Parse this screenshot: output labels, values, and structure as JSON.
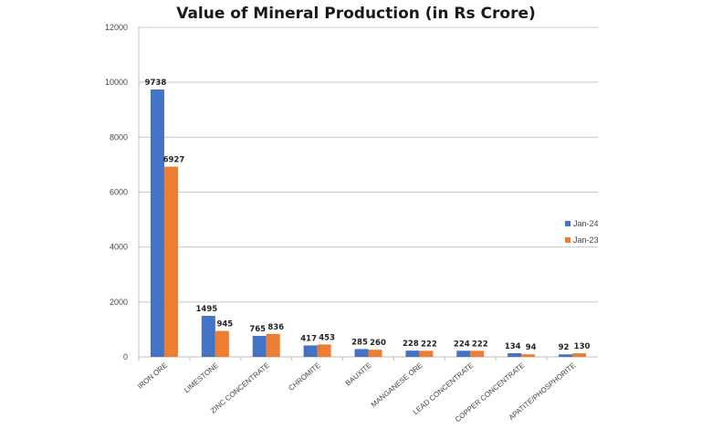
{
  "chart_data": {
    "type": "bar",
    "title": "Value of Mineral Production (in Rs Crore)",
    "xlabel": "",
    "ylabel": "",
    "ylim": [
      0,
      12000
    ],
    "yticks": [
      0,
      2000,
      4000,
      6000,
      8000,
      10000,
      12000
    ],
    "grid": true,
    "legend_position": "right",
    "categories": [
      "IRON ORE",
      "LIMESTONE",
      "ZINC CONCENTRATE",
      "CHROMITE",
      "BAUXITE",
      "MANGANESE ORE",
      "LEAD CONCENTRATE",
      "COPPER CONCENTRATE",
      "APATITE/PHOSPHORITE"
    ],
    "series": [
      {
        "name": "Jan-24",
        "color": "#4472C4",
        "values": [
          9738,
          1495,
          765,
          417,
          285,
          228,
          224,
          134,
          92
        ]
      },
      {
        "name": "Jan-23",
        "color": "#ED7D31",
        "values": [
          6927,
          945,
          836,
          453,
          260,
          222,
          222,
          94,
          130
        ]
      }
    ]
  }
}
